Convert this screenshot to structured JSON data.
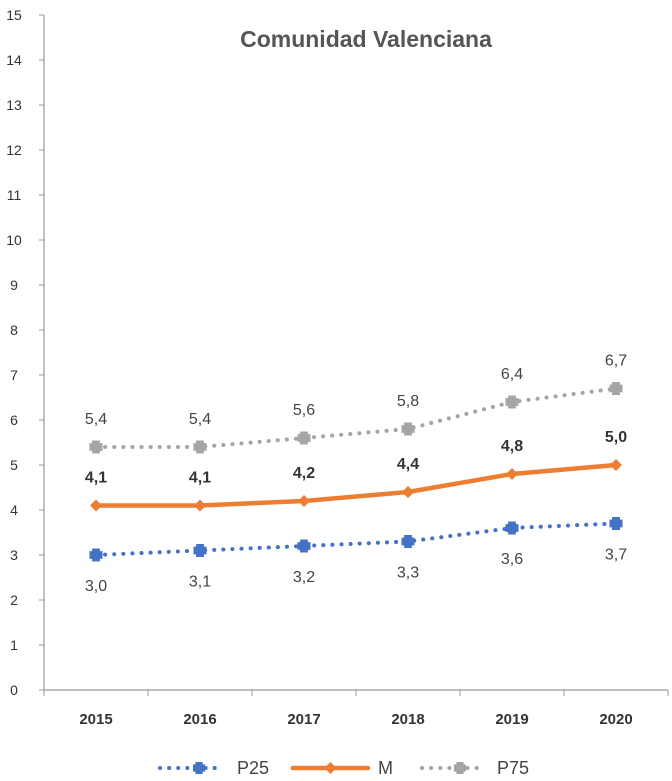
{
  "chart_data": {
    "type": "line",
    "title": "Comunidad Valenciana",
    "xlabel": "",
    "ylabel": "",
    "categories": [
      "2015",
      "2016",
      "2017",
      "2018",
      "2019",
      "2020"
    ],
    "ylim": [
      0,
      15
    ],
    "yticks": [
      "0",
      "1",
      "2",
      "3",
      "4",
      "5",
      "6",
      "7",
      "8",
      "9",
      "10",
      "11",
      "12",
      "13",
      "14",
      "15"
    ],
    "grid": false,
    "legend_position": "bottom",
    "series": [
      {
        "name": "P25",
        "values": [
          3.0,
          3.1,
          3.2,
          3.3,
          3.6,
          3.7
        ],
        "labels": [
          "3,0",
          "3,1",
          "3,2",
          "3,3",
          "3,6",
          "3,7"
        ],
        "color": "#4472C4",
        "line_style": "dotted",
        "marker": "plus",
        "label_position": "below"
      },
      {
        "name": "M",
        "values": [
          4.1,
          4.1,
          4.2,
          4.4,
          4.8,
          5.0
        ],
        "labels": [
          "4,1",
          "4,1",
          "4,2",
          "4,4",
          "4,8",
          "5,0"
        ],
        "color": "#ED7D31",
        "line_style": "solid",
        "marker": "diamond",
        "label_position": "above"
      },
      {
        "name": "P75",
        "values": [
          5.4,
          5.4,
          5.6,
          5.8,
          6.4,
          6.7
        ],
        "labels": [
          "5,4",
          "5,4",
          "5,6",
          "5,8",
          "6,4",
          "6,7"
        ],
        "color": "#A5A5A5",
        "line_style": "dotted",
        "marker": "plus",
        "label_position": "above"
      }
    ]
  }
}
